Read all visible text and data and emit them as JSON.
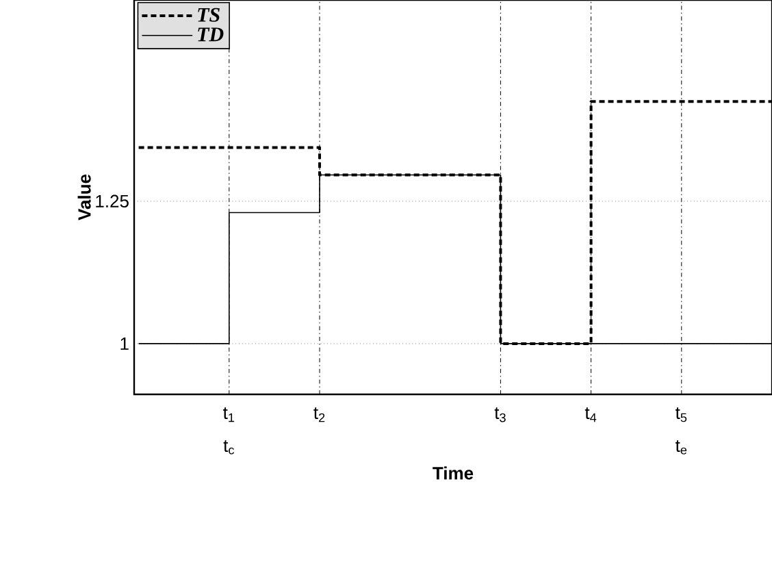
{
  "chart_data": {
    "type": "step",
    "xlabel": "Time",
    "ylabel": "Value",
    "categories": [
      null,
      "t$_{1}$ t$_{c}$",
      "t$_{2}$",
      null,
      "t$_{3}$",
      "t$_{4}$",
      "t$_{5}$ t$_{e}$",
      null
    ],
    "ylim": [
      0.911,
      1.603
    ],
    "yticks": [
      1,
      1.25
    ],
    "grid": true,
    "legend": "top left",
    "series": [
      {
        "name": "TS",
        "color": "#000000",
        "line_style": "dashed",
        "values": [
          1.344,
          1.344,
          1.296,
          1.296,
          1,
          1.425,
          1.425,
          1.425
        ]
      },
      {
        "name": "TD",
        "color": "#000000",
        "line_style": "solid",
        "values": [
          1,
          1.23,
          1.296,
          1.296,
          1,
          1,
          1,
          1
        ]
      }
    ]
  }
}
